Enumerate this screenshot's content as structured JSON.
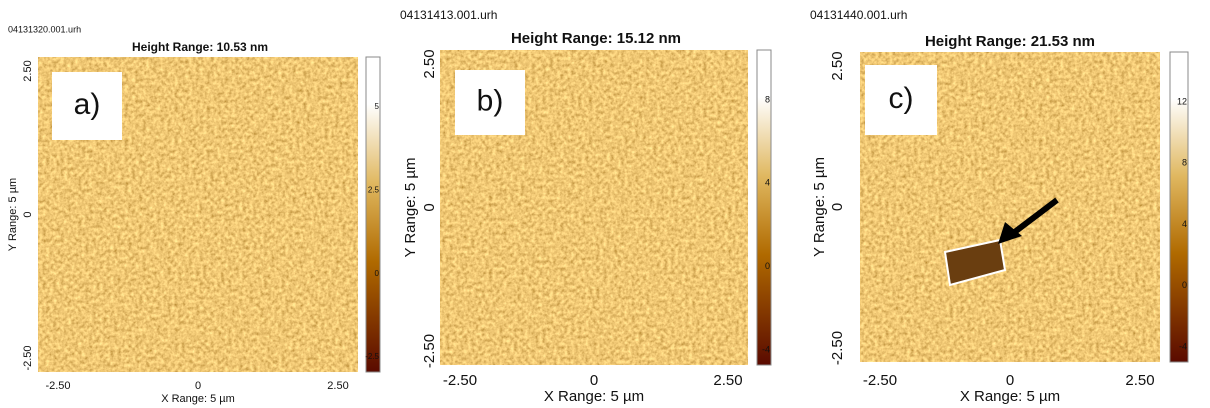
{
  "panels": [
    {
      "file": "04131320.001.urh",
      "title": "Height Range:  10.53 nm",
      "label": "a)",
      "y_axis": "Y Range: 5 µm",
      "x_axis": "X Range: 5 µm",
      "yticks": [
        "2.50",
        "0",
        "-2.50"
      ],
      "xticks": [
        "-2.50",
        "0",
        "2.50"
      ],
      "colorbar_ticks": [
        "5",
        "2.5",
        "0",
        "-2.5"
      ]
    },
    {
      "file": "04131413.001.urh",
      "title": "Height Range:  15.12 nm",
      "label": "b)",
      "y_axis": "Y Range: 5 µm",
      "x_axis": "X Range: 5 µm",
      "yticks": [
        "2.50",
        "0",
        "-2.50"
      ],
      "xticks": [
        "-2.50",
        "0",
        "2.50"
      ],
      "colorbar_ticks": [
        "8",
        "4",
        "0",
        "-4"
      ]
    },
    {
      "file": "04131440.001.urh",
      "title": "Height Range:  21.53 nm",
      "label": "c)",
      "y_axis": "Y Range: 5 µm",
      "x_axis": "X Range: 5 µm",
      "yticks": [
        "2.50",
        "0",
        "-2.50"
      ],
      "xticks": [
        "-2.50",
        "0",
        "2.50"
      ],
      "colorbar_ticks": [
        "12",
        "8",
        "4",
        "0",
        "-4"
      ]
    }
  ]
}
